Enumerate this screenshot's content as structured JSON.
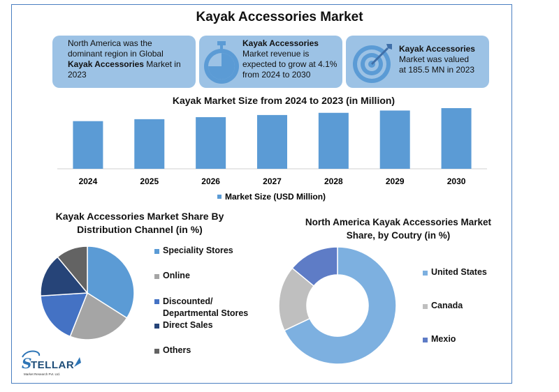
{
  "page": {
    "title": "Kayak Accessories Market"
  },
  "cards": [
    {
      "id": "region",
      "lines": [
        "North America was the",
        "dominant region in Global"
      ],
      "bold_lead": "Kayak Accessories",
      "tail": " Market in",
      "last": "2023"
    },
    {
      "id": "growth",
      "bold": "Kayak Accessories",
      "lines": [
        "Market revenue is",
        "expected to grow at 4.1%",
        "from 2024 to 2030"
      ],
      "icon": "stopwatch-icon"
    },
    {
      "id": "value",
      "bold": "Kayak Accessories",
      "lines": [
        "Market was valued",
        "at 185.5 MN in 2023"
      ],
      "icon": "target-icon"
    }
  ],
  "colors": {
    "card_bg": "#9cc2e5",
    "bar": "#5b9bd5",
    "speciality": "#5b9bd5",
    "online": "#a5a5a5",
    "discounted": "#4472c4",
    "direct": "#264478",
    "others": "#636363",
    "us": "#7db0e0",
    "canada": "#bfbfbf",
    "mexico": "#5e7cc6"
  },
  "chart_data": [
    {
      "type": "bar",
      "title": "Kayak Market Size from 2024 to 2023 (in Million)",
      "categories": [
        "2024",
        "2025",
        "2026",
        "2027",
        "2028",
        "2029",
        "2030"
      ],
      "series": [
        {
          "name": "Market Size (USD Million)",
          "values": [
            193.1,
            201.0,
            209.3,
            217.9,
            226.8,
            236.1,
            245.8
          ]
        }
      ],
      "ylim": [
        0,
        260
      ]
    },
    {
      "type": "pie",
      "title": "Kayak Accessories Market Share By Distribution Channel (in %)",
      "labels": [
        "Speciality Stores",
        "Online",
        "Discounted/ Departmental Stores",
        "Direct Sales",
        "Others"
      ],
      "values": [
        34,
        22,
        18,
        15,
        11
      ]
    },
    {
      "type": "pie",
      "donut": true,
      "title": "North America Kayak Accessories Market Share, by Coutry (in %)",
      "labels": [
        "United States",
        "Canada",
        "Mexio"
      ],
      "values": [
        68,
        18,
        14
      ]
    }
  ],
  "logo": {
    "name": "STELLAR",
    "tagline": "Market Research Pvt. Ltd."
  }
}
